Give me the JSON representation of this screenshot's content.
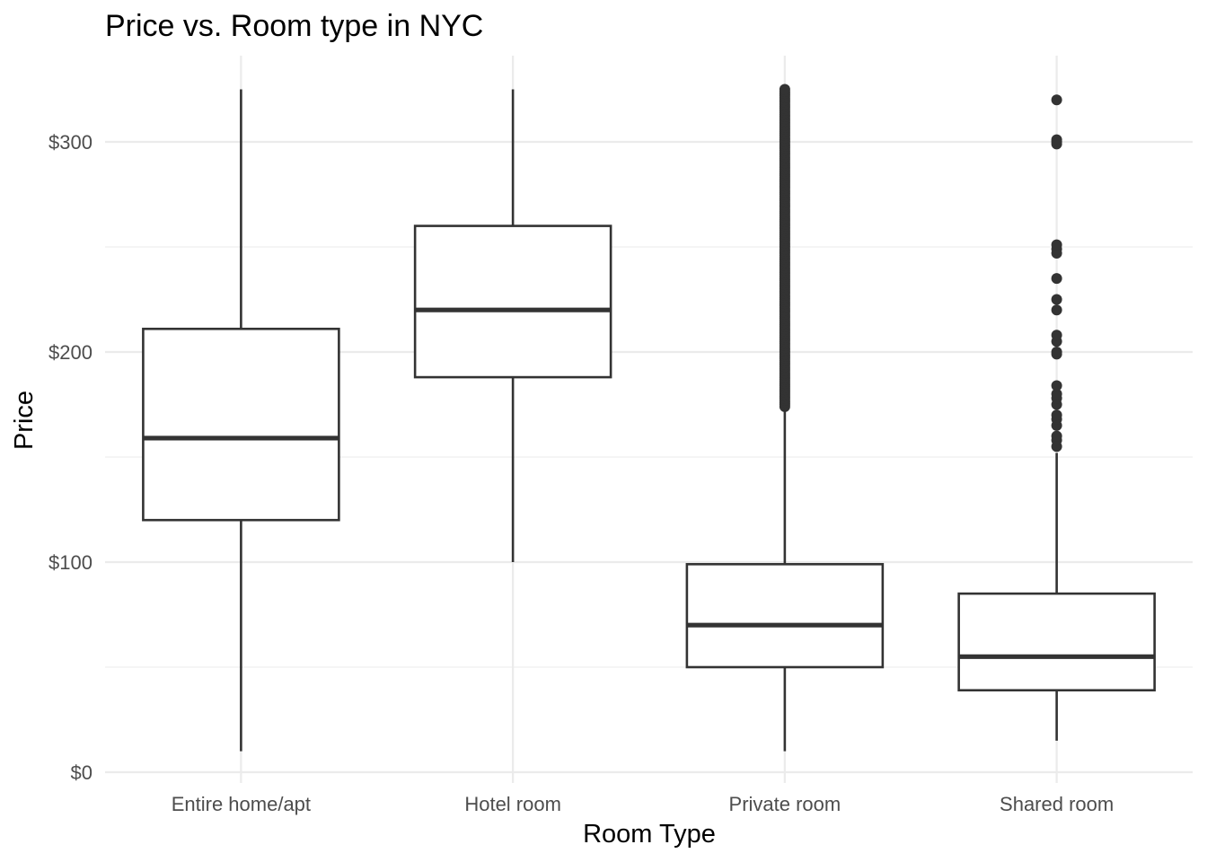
{
  "chart_data": {
    "type": "box",
    "title": "Price vs. Room type in NYC",
    "xlabel": "Room Type",
    "ylabel": "Price",
    "ylim": [
      0,
      335
    ],
    "y_ticks": [
      0,
      100,
      200,
      300
    ],
    "y_tick_labels": [
      "$0",
      "$100",
      "$200",
      "$300"
    ],
    "grid": true,
    "categories": [
      "Entire home/apt",
      "Hotel room",
      "Private room",
      "Shared room"
    ],
    "boxes": [
      {
        "category": "Entire home/apt",
        "whisker_low": 10,
        "q1": 120,
        "median": 159,
        "q3": 211,
        "whisker_high": 325,
        "outliers": []
      },
      {
        "category": "Hotel room",
        "whisker_low": 100,
        "q1": 188,
        "median": 220,
        "q3": 260,
        "whisker_high": 325,
        "outliers": []
      },
      {
        "category": "Private room",
        "whisker_low": 10,
        "q1": 50,
        "median": 70,
        "q3": 99,
        "whisker_high": 173,
        "outliers": [
          174,
          175,
          176,
          177,
          178,
          179,
          180,
          181,
          182,
          183,
          184,
          185,
          186,
          187,
          188,
          189,
          190,
          191,
          192,
          193,
          194,
          195,
          196,
          197,
          198,
          199,
          200,
          201,
          202,
          203,
          204,
          205,
          206,
          207,
          208,
          209,
          210,
          211,
          212,
          213,
          214,
          215,
          216,
          217,
          218,
          219,
          220,
          221,
          222,
          223,
          224,
          225,
          226,
          227,
          228,
          229,
          230,
          231,
          232,
          233,
          234,
          235,
          236,
          237,
          238,
          239,
          240,
          241,
          242,
          243,
          244,
          245,
          246,
          247,
          248,
          249,
          250,
          251,
          252,
          253,
          254,
          255,
          256,
          257,
          258,
          259,
          260,
          261,
          262,
          263,
          264,
          265,
          266,
          267,
          268,
          269,
          270,
          271,
          272,
          273,
          274,
          275,
          276,
          277,
          278,
          279,
          280,
          281,
          282,
          283,
          284,
          285,
          286,
          287,
          288,
          289,
          290,
          291,
          292,
          293,
          294,
          295,
          296,
          297,
          298,
          299,
          300,
          301,
          302,
          303,
          304,
          305,
          306,
          307,
          308,
          309,
          310,
          311,
          312,
          313,
          314,
          315,
          316,
          317,
          318,
          319,
          320,
          321,
          322,
          323,
          324,
          325
        ]
      },
      {
        "category": "Shared room",
        "whisker_low": 15,
        "q1": 39,
        "median": 55,
        "q3": 85,
        "whisker_high": 152,
        "outliers": [
          155,
          158,
          160,
          165,
          168,
          170,
          175,
          178,
          180,
          184,
          199,
          200,
          205,
          208,
          220,
          225,
          235,
          247,
          249,
          251,
          299,
          300,
          301,
          320
        ]
      }
    ]
  }
}
